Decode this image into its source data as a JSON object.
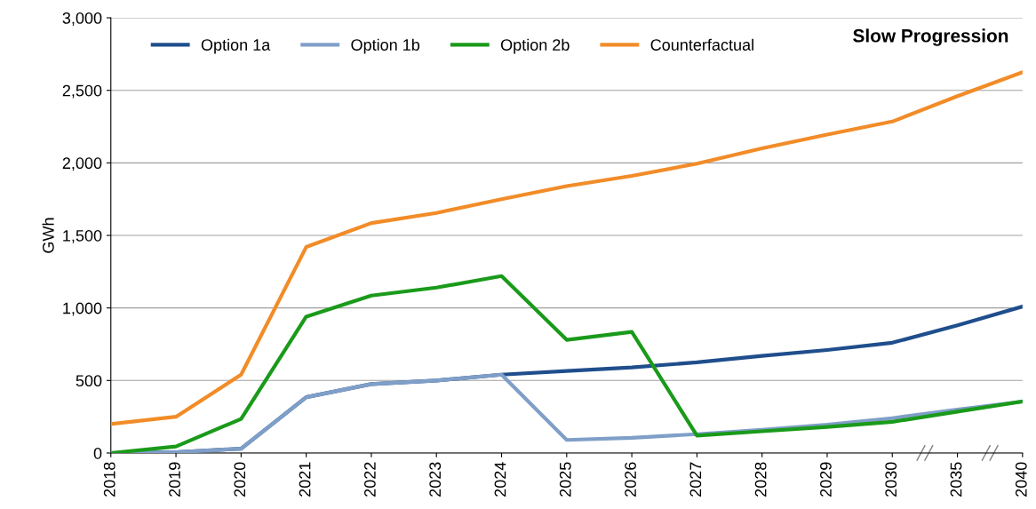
{
  "chart_data": {
    "type": "line",
    "title": "Slow Progression",
    "ylabel": "GWh",
    "categories": [
      "2018",
      "2019",
      "2020",
      "2021",
      "2022",
      "2023",
      "2024",
      "2025",
      "2026",
      "2027",
      "2028",
      "2029",
      "2030",
      "2035",
      "2040"
    ],
    "series": [
      {
        "name": "Option 1a",
        "color": "#1f4e8c",
        "values": [
          0,
          5,
          30,
          385,
          475,
          500,
          540,
          565,
          590,
          625,
          670,
          710,
          760,
          880,
          1010
        ]
      },
      {
        "name": "Option 1b",
        "color": "#7f9fc8",
        "values": [
          0,
          5,
          30,
          385,
          475,
          500,
          540,
          90,
          105,
          130,
          160,
          195,
          240,
          300,
          355
        ]
      },
      {
        "name": "Option 2b",
        "color": "#1a9a1a",
        "values": [
          0,
          45,
          235,
          940,
          1085,
          1140,
          1220,
          780,
          835,
          120,
          150,
          180,
          215,
          285,
          355
        ]
      },
      {
        "name": "Counterfactual",
        "color": "#f28c28",
        "values": [
          200,
          250,
          540,
          1420,
          1585,
          1655,
          1750,
          1840,
          1910,
          1995,
          2100,
          2195,
          2285,
          2460,
          2625
        ]
      }
    ],
    "ylim": [
      0,
      3000
    ],
    "yticks": [
      0,
      500,
      {
        "value": 1000,
        "label": "1,000"
      },
      {
        "value": 1500,
        "label": "1,500"
      },
      {
        "value": 2000,
        "label": "2,000"
      },
      {
        "value": 2500,
        "label": "2,500"
      },
      {
        "value": 3000,
        "label": "3,000"
      }
    ],
    "grid": "y",
    "legend": "top left",
    "marker": "none",
    "line_style": "solid"
  }
}
